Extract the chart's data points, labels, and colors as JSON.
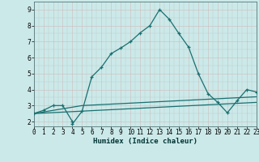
{
  "xlabel": "Humidex (Indice chaleur)",
  "bg_color": "#cce9e9",
  "grid_color_minor": "#c8d8d0",
  "grid_color_major": "#99bbbb",
  "line_color": "#1a7070",
  "xlim": [
    0,
    23
  ],
  "ylim": [
    1.7,
    9.5
  ],
  "xticks": [
    0,
    1,
    2,
    3,
    4,
    5,
    6,
    7,
    8,
    9,
    10,
    11,
    12,
    13,
    14,
    15,
    16,
    17,
    18,
    19,
    20,
    21,
    22,
    23
  ],
  "yticks": [
    2,
    3,
    4,
    5,
    6,
    7,
    8,
    9
  ],
  "line1_x": [
    0,
    1,
    2,
    3,
    4,
    4,
    5,
    6,
    7,
    8,
    9,
    10,
    11,
    12,
    13,
    14,
    15,
    16,
    17,
    18,
    19,
    20,
    21,
    22,
    23
  ],
  "line1_y": [
    2.5,
    2.7,
    3.0,
    3.0,
    2.0,
    1.85,
    2.65,
    4.8,
    5.4,
    6.25,
    6.6,
    7.0,
    7.55,
    8.0,
    9.0,
    8.4,
    7.5,
    6.65,
    5.0,
    3.75,
    3.2,
    2.55,
    3.3,
    4.0,
    3.85
  ],
  "line2_x": [
    0,
    5,
    23
  ],
  "line2_y": [
    2.5,
    3.0,
    3.55
  ],
  "line3_x": [
    0,
    23
  ],
  "line3_y": [
    2.5,
    3.2
  ]
}
